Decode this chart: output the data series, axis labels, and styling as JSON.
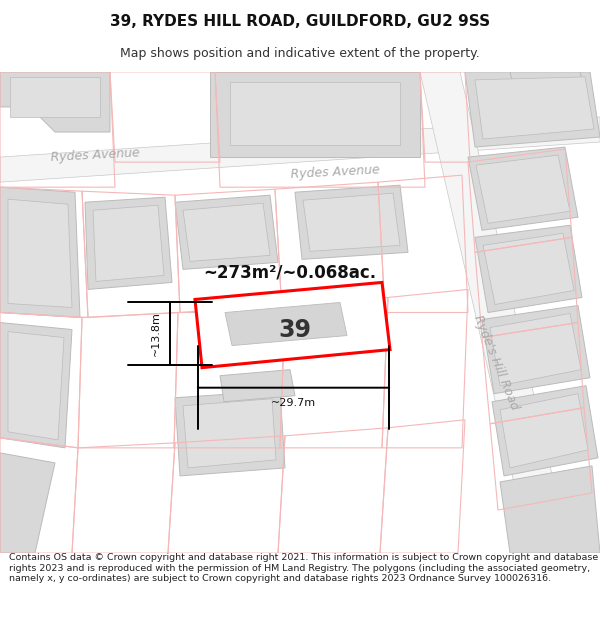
{
  "title": "39, RYDES HILL ROAD, GUILDFORD, GU2 9SS",
  "subtitle": "Map shows position and indicative extent of the property.",
  "footer": "Contains OS data © Crown copyright and database right 2021. This information is subject to Crown copyright and database rights 2023 and is reproduced with the permission of HM Land Registry. The polygons (including the associated geometry, namely x, y co-ordinates) are subject to Crown copyright and database rights 2023 Ordnance Survey 100026316.",
  "bg_color": "#ffffff",
  "road_fill": "#eeeeee",
  "road_border": "#bbbbbb",
  "block_fill": "#d8d8d8",
  "block_border": "#bbbbbb",
  "inner_fill": "#e8e8e8",
  "pink": "#f5b8b8",
  "red": "#ff0000",
  "road_label_color": "#aaaaaa",
  "area_text": "~273m²/~0.068ac.",
  "number_text": "39",
  "width_label": "~29.7m",
  "height_label": "~13.8m",
  "label_rydes_left": "Rydes Avenue",
  "label_rydes_right": "Rydes Avenue",
  "label_hill_road": "Ryde's Hill Road",
  "title_fontsize": 11,
  "subtitle_fontsize": 9,
  "footer_fontsize": 6.8
}
